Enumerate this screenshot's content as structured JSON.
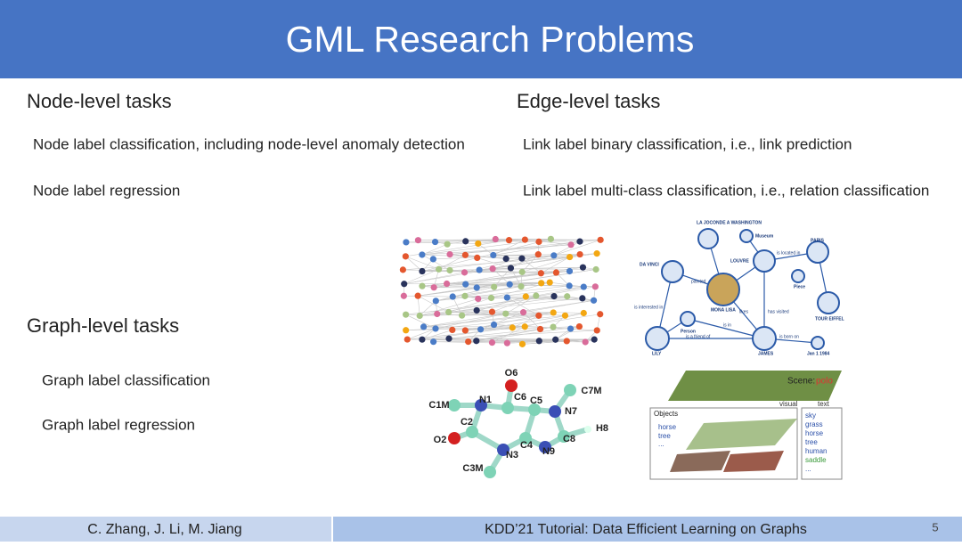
{
  "header": {
    "title": "GML Research Problems"
  },
  "sections": [
    {
      "heading": "Node-level tasks",
      "items": [
        "Node label classification, including node-level anomaly detection",
        "Node label regression"
      ]
    },
    {
      "heading": "Edge-level tasks",
      "items": [
        "Link label binary classification, i.e., link prediction",
        "Link label multi-class classification, i.e., relation classification"
      ]
    },
    {
      "heading": "Graph-level tasks",
      "items": [
        "Graph label classification",
        "Graph label regression"
      ]
    }
  ],
  "figures": {
    "knowledge_graph": {
      "nodes": [
        "LA JOCONDE A WASHINGTON",
        "Museum",
        "PARIS",
        "DA VINCI",
        "LOUVRE",
        "MONA LISA",
        "Piece",
        "Person",
        "TOUR EIFFEL",
        "LILY",
        "JAMES",
        "Jan 1 1984"
      ],
      "edges": [
        "painted",
        "is located in",
        "is in",
        "is a friend of",
        "is born on",
        "likes",
        "has visited",
        "is interested in"
      ]
    },
    "molecule": {
      "atoms": [
        "O6",
        "C6",
        "C5",
        "N7",
        "C7M",
        "H8",
        "C8",
        "N9",
        "C4",
        "N3",
        "C3M",
        "C2",
        "O2",
        "N1",
        "C1M"
      ]
    },
    "scene_graph": {
      "scene_label": "Scene:",
      "scene": "polo",
      "visual": "visual",
      "text": "text",
      "objects_title": "Objects",
      "objects": [
        "horse",
        "tree",
        "..."
      ],
      "words": [
        "sky",
        "grass",
        "horse",
        "tree",
        "human",
        "saddle",
        "..."
      ]
    }
  },
  "footer": {
    "authors": "C. Zhang, J. Li, M. Jiang",
    "event": "KDD’21 Tutorial: Data Efficient Learning on Graphs",
    "page": "5"
  }
}
